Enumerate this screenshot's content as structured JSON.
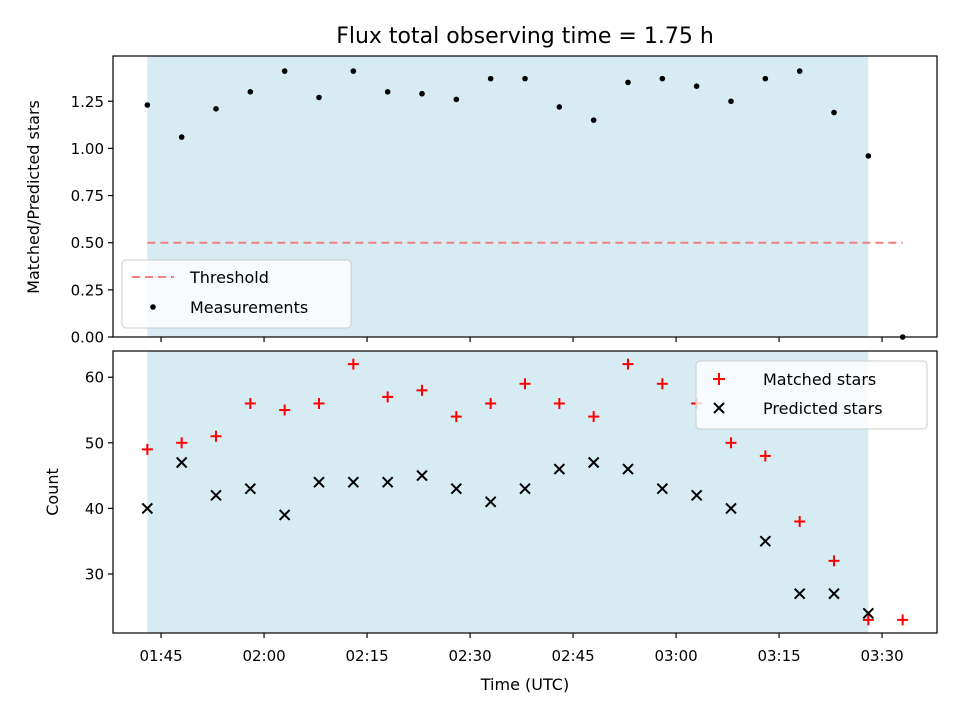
{
  "chart_data": [
    {
      "type": "scatter",
      "title": "Flux total observing time = 1.75 h",
      "xlabel": "",
      "ylabel": "Matched/Predicted stars",
      "x_range": [
        "01:38",
        "03:38"
      ],
      "ylim": [
        0.0,
        1.49
      ],
      "yticks": [
        0.0,
        0.25,
        0.5,
        0.75,
        1.0,
        1.25
      ],
      "ytick_labels": [
        "0.00",
        "0.25",
        "0.50",
        "0.75",
        "1.00",
        "1.25"
      ],
      "observing_window": [
        "01:43",
        "03:28"
      ],
      "threshold": {
        "name": "Threshold",
        "value": 0.5,
        "x_range": [
          "01:43",
          "03:33"
        ],
        "color": "#f08080"
      },
      "series": [
        {
          "name": "Measurements",
          "color": "#000000",
          "x": [
            "01:43",
            "01:48",
            "01:53",
            "01:58",
            "02:03",
            "02:08",
            "02:13",
            "02:18",
            "02:23",
            "02:28",
            "02:33",
            "02:38",
            "02:43",
            "02:48",
            "02:53",
            "02:58",
            "03:03",
            "03:08",
            "03:13",
            "03:18",
            "03:23",
            "03:28",
            "03:33"
          ],
          "values": [
            1.23,
            1.06,
            1.21,
            1.3,
            1.41,
            1.27,
            1.41,
            1.3,
            1.29,
            1.26,
            1.37,
            1.37,
            1.22,
            1.15,
            1.35,
            1.37,
            1.33,
            1.25,
            1.37,
            1.41,
            1.19,
            0.96,
            0.0
          ]
        }
      ],
      "legend_position": "lower-left",
      "grid": false
    },
    {
      "type": "scatter",
      "title": "",
      "xlabel": "Time (UTC)",
      "ylabel": "Count",
      "x_range": [
        "01:38",
        "03:38"
      ],
      "xticks": [
        "01:45",
        "02:00",
        "02:15",
        "02:30",
        "02:45",
        "03:00",
        "03:15",
        "03:30"
      ],
      "ylim": [
        21,
        64
      ],
      "yticks": [
        30,
        40,
        50,
        60
      ],
      "ytick_labels": [
        "30",
        "40",
        "50",
        "60"
      ],
      "observing_window": [
        "01:43",
        "03:28"
      ],
      "series": [
        {
          "name": "Matched stars",
          "marker": "plus",
          "color": "#ff0000",
          "x": [
            "01:43",
            "01:48",
            "01:53",
            "01:58",
            "02:03",
            "02:08",
            "02:13",
            "02:18",
            "02:23",
            "02:28",
            "02:33",
            "02:38",
            "02:43",
            "02:48",
            "02:53",
            "02:58",
            "03:03",
            "03:08",
            "03:13",
            "03:18",
            "03:23",
            "03:28",
            "03:33"
          ],
          "values": [
            49,
            50,
            51,
            56,
            55,
            56,
            62,
            57,
            58,
            54,
            56,
            59,
            56,
            54,
            62,
            59,
            56,
            50,
            48,
            38,
            32,
            23,
            23
          ]
        },
        {
          "name": "Predicted stars",
          "marker": "x",
          "color": "#000000",
          "x": [
            "01:43",
            "01:48",
            "01:53",
            "01:58",
            "02:03",
            "02:08",
            "02:13",
            "02:18",
            "02:23",
            "02:28",
            "02:33",
            "02:38",
            "02:43",
            "02:48",
            "02:53",
            "02:58",
            "03:03",
            "03:08",
            "03:13",
            "03:18",
            "03:23",
            "03:28"
          ],
          "values": [
            40,
            47,
            42,
            43,
            39,
            44,
            44,
            44,
            45,
            43,
            41,
            43,
            46,
            47,
            46,
            43,
            42,
            40,
            35,
            27,
            27,
            24
          ]
        }
      ],
      "legend_position": "upper-right",
      "grid": false
    }
  ],
  "colors": {
    "observing_window_fill": "#add8e6",
    "plus_marker": "#ff0000",
    "x_marker": "#000000"
  }
}
